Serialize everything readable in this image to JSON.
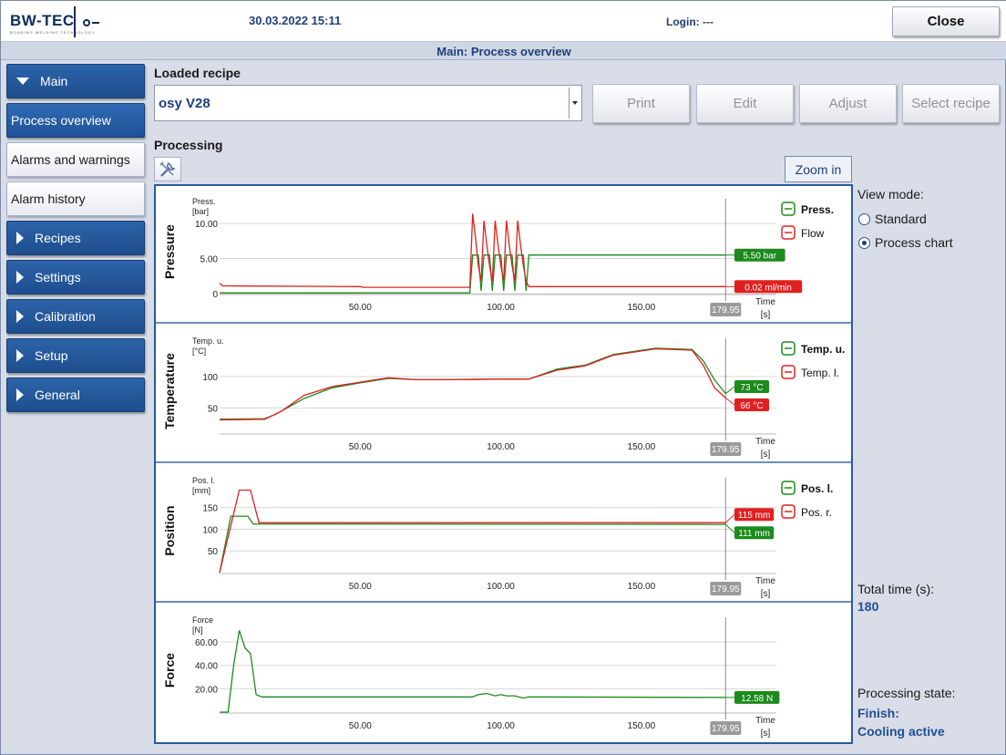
{
  "header": {
    "logo_text": "BW-TEC",
    "logo_tagline": "BONDING WELDING TECHNOLOGY",
    "datetime": "30.03.2022 15:11",
    "login": "Login: ---",
    "close_label": "Close"
  },
  "page_title": "Main: Process overview",
  "sidebar": {
    "items": [
      {
        "label": "Main",
        "style": "blue",
        "expanded": true
      },
      {
        "label": "Process overview",
        "style": "active"
      },
      {
        "label": "Alarms and warnings",
        "style": "white"
      },
      {
        "label": "Alarm history",
        "style": "white"
      },
      {
        "label": "Recipes",
        "style": "blue"
      },
      {
        "label": "Settings",
        "style": "blue"
      },
      {
        "label": "Calibration",
        "style": "blue"
      },
      {
        "label": "Setup",
        "style": "blue"
      },
      {
        "label": "General",
        "style": "blue"
      }
    ]
  },
  "recipe": {
    "section_label": "Loaded recipe",
    "selected": "osy V28",
    "buttons": {
      "print": "Print",
      "edit": "Edit",
      "adjust": "Adjust",
      "select": "Select recipe"
    }
  },
  "processing": {
    "section_label": "Processing",
    "tool_icon": "tools-icon",
    "zoom_label": "Zoom in"
  },
  "colors": {
    "green": "#1c8a1c",
    "red": "#e02020",
    "accent": "#1f3f7a",
    "cursor_badge": "#9a9a9a"
  },
  "chart_data": [
    {
      "type": "line",
      "side_title": "Pressure",
      "ylabel": "Press.",
      "yunit": "[bar]",
      "xlabel": "Time",
      "xunit": "[s]",
      "xlim": [
        0,
        198
      ],
      "ylim": [
        0,
        13
      ],
      "yticks": [
        {
          "v": 0,
          "label": "0"
        },
        {
          "v": 5,
          "label": "5.00"
        },
        {
          "v": 10,
          "label": "10.00"
        }
      ],
      "xticks": [
        {
          "v": 50,
          "label": "50.00"
        },
        {
          "v": 100,
          "label": "100.00"
        },
        {
          "v": 150,
          "label": "150.00"
        }
      ],
      "cursor": {
        "x": 179.95,
        "label": "179.95"
      },
      "series": [
        {
          "name": "Press.",
          "color": "green",
          "bold": true,
          "badge": "5.50 bar",
          "points": [
            [
              0,
              0.1
            ],
            [
              89,
              0.1
            ],
            [
              90,
              5.5
            ],
            [
              92,
              5.5
            ],
            [
              93,
              0.4
            ],
            [
              94,
              5.5
            ],
            [
              96,
              5.5
            ],
            [
              97,
              0.4
            ],
            [
              98,
              5.5
            ],
            [
              100,
              5.5
            ],
            [
              101,
              0.4
            ],
            [
              102,
              5.5
            ],
            [
              104,
              5.5
            ],
            [
              105,
              0.4
            ],
            [
              106,
              5.5
            ],
            [
              108,
              5.5
            ],
            [
              109,
              0.4
            ],
            [
              110,
              5.5
            ],
            [
              179.95,
              5.5
            ]
          ]
        },
        {
          "name": "Flow",
          "color": "red",
          "bold": false,
          "badge": "0.02 ml/min",
          "points": [
            [
              0,
              1.5
            ],
            [
              1,
              1.1
            ],
            [
              50,
              1.0
            ],
            [
              51,
              0.9
            ],
            [
              89,
              0.9
            ],
            [
              90,
              11.4
            ],
            [
              91,
              8
            ],
            [
              92,
              4
            ],
            [
              93,
              1.8
            ],
            [
              94,
              10.4
            ],
            [
              95,
              7
            ],
            [
              96,
              4
            ],
            [
              97,
              1.8
            ],
            [
              98,
              10.4
            ],
            [
              99,
              7
            ],
            [
              100,
              4
            ],
            [
              101,
              1.8
            ],
            [
              102,
              10.4
            ],
            [
              103,
              7
            ],
            [
              104,
              4
            ],
            [
              105,
              1.8
            ],
            [
              106,
              10.4
            ],
            [
              107,
              7
            ],
            [
              108,
              4
            ],
            [
              109,
              1.8
            ],
            [
              110,
              1.0
            ],
            [
              179.95,
              1.0
            ]
          ]
        }
      ]
    },
    {
      "type": "line",
      "side_title": "Temperature",
      "ylabel": "Temp. u.",
      "yunit": "[°C]",
      "xlabel": "Time",
      "xunit": "[s]",
      "xlim": [
        0,
        198
      ],
      "ylim": [
        10,
        155
      ],
      "yticks": [
        {
          "v": 50,
          "label": "50"
        },
        {
          "v": 100,
          "label": "100"
        }
      ],
      "xticks": [
        {
          "v": 50,
          "label": "50.00"
        },
        {
          "v": 100,
          "label": "100.00"
        },
        {
          "v": 150,
          "label": "150.00"
        }
      ],
      "cursor": {
        "x": 179.95,
        "label": "179.95"
      },
      "series": [
        {
          "name": "Temp. u.",
          "color": "green",
          "bold": true,
          "badge": "73 °C",
          "points": [
            [
              0,
              32
            ],
            [
              16,
              33
            ],
            [
              20,
              40
            ],
            [
              30,
              65
            ],
            [
              40,
              82
            ],
            [
              50,
              90
            ],
            [
              60,
              97
            ],
            [
              70,
              95
            ],
            [
              80,
              95
            ],
            [
              100,
              96
            ],
            [
              110,
              96
            ],
            [
              120,
              112
            ],
            [
              130,
              118
            ],
            [
              140,
              135
            ],
            [
              155,
              145
            ],
            [
              168,
              143
            ],
            [
              172,
              125
            ],
            [
              176,
              95
            ],
            [
              179.95,
              73
            ]
          ]
        },
        {
          "name": "Temp. l.",
          "color": "red",
          "bold": false,
          "badge": "66 °C",
          "points": [
            [
              0,
              31
            ],
            [
              16,
              32
            ],
            [
              22,
              45
            ],
            [
              30,
              70
            ],
            [
              40,
              84
            ],
            [
              50,
              91
            ],
            [
              60,
              98
            ],
            [
              70,
              95
            ],
            [
              80,
              95
            ],
            [
              100,
              96
            ],
            [
              110,
              96
            ],
            [
              120,
              110
            ],
            [
              130,
              117
            ],
            [
              140,
              134
            ],
            [
              155,
              144
            ],
            [
              168,
              142
            ],
            [
              172,
              118
            ],
            [
              176,
              82
            ],
            [
              179.95,
              66
            ]
          ]
        }
      ]
    },
    {
      "type": "line",
      "side_title": "Position",
      "ylabel": "Pos. l.",
      "yunit": "[mm]",
      "xlabel": "Time",
      "xunit": "[s]",
      "xlim": [
        0,
        198
      ],
      "ylim": [
        0,
        210
      ],
      "yticks": [
        {
          "v": 50,
          "label": "50"
        },
        {
          "v": 100,
          "label": "100"
        },
        {
          "v": 150,
          "label": "150"
        }
      ],
      "xticks": [
        {
          "v": 50,
          "label": "50.00"
        },
        {
          "v": 100,
          "label": "100.00"
        },
        {
          "v": 150,
          "label": "150.00"
        }
      ],
      "cursor": {
        "x": 179.95,
        "label": "179.95"
      },
      "series": [
        {
          "name": "Pos. l.",
          "color": "green",
          "bold": true,
          "badge": "111 mm",
          "points": [
            [
              0,
              0
            ],
            [
              4,
              130
            ],
            [
              10,
              130
            ],
            [
              12,
              112
            ],
            [
              179.95,
              111
            ]
          ]
        },
        {
          "name": "Pos. r.",
          "color": "red",
          "bold": false,
          "badge": "115 mm",
          "points": [
            [
              0,
              0
            ],
            [
              7,
              190
            ],
            [
              11,
              190
            ],
            [
              14,
              115
            ],
            [
              179.95,
              115
            ]
          ]
        }
      ]
    },
    {
      "type": "line",
      "side_title": "Force",
      "ylabel": "Force",
      "yunit": "[N]",
      "xlabel": "Time",
      "xunit": "[s]",
      "xlim": [
        0,
        198
      ],
      "ylim": [
        0,
        78
      ],
      "yticks": [
        {
          "v": 20,
          "label": "20.00"
        },
        {
          "v": 40,
          "label": "40.00"
        },
        {
          "v": 60,
          "label": "60.00"
        }
      ],
      "xticks": [
        {
          "v": 50,
          "label": "50.00"
        },
        {
          "v": 100,
          "label": "100.00"
        },
        {
          "v": 150,
          "label": "150.00"
        }
      ],
      "cursor": {
        "x": 179.95,
        "label": "179.95"
      },
      "series": [
        {
          "name": "Force",
          "color": "green",
          "bold": false,
          "badge": "12.58 N",
          "points": [
            [
              0,
              0
            ],
            [
              3,
              0
            ],
            [
              5,
              40
            ],
            [
              7,
              70
            ],
            [
              9,
              55
            ],
            [
              11,
              50
            ],
            [
              13,
              15
            ],
            [
              15,
              13
            ],
            [
              90,
              13
            ],
            [
              92,
              15
            ],
            [
              95,
              16
            ],
            [
              98,
              14
            ],
            [
              100,
              15
            ],
            [
              102,
              14
            ],
            [
              105,
              14
            ],
            [
              108,
              12
            ],
            [
              110,
              13
            ],
            [
              179.95,
              12.58
            ]
          ]
        }
      ]
    }
  ],
  "right_panel": {
    "view_mode_label": "View mode:",
    "options": [
      {
        "label": "Standard",
        "selected": false
      },
      {
        "label": "Process chart",
        "selected": true
      }
    ],
    "total_time_label": "Total time (s):",
    "total_time_value": "180",
    "state_label": "Processing state:",
    "state_value_1": "Finish:",
    "state_value_2": "Cooling active"
  }
}
